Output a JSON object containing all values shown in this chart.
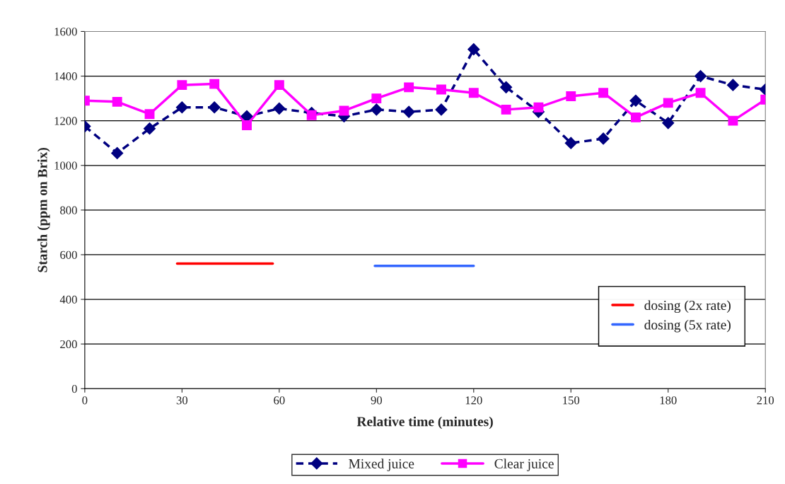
{
  "chart_data": {
    "type": "line",
    "xlabel": "Relative time (minutes)",
    "ylabel": "Starch (ppm on Brix)",
    "x": [
      0,
      10,
      20,
      30,
      40,
      50,
      60,
      70,
      80,
      90,
      100,
      110,
      120,
      130,
      140,
      150,
      160,
      170,
      180,
      190,
      200,
      210
    ],
    "xlim": [
      0,
      210
    ],
    "xticks": [
      0,
      30,
      60,
      90,
      120,
      150,
      180,
      210
    ],
    "ylim": [
      0,
      1600
    ],
    "yticks": [
      0,
      200,
      400,
      600,
      800,
      1000,
      1200,
      1400,
      1600
    ],
    "grid": "y",
    "legend": "bottom",
    "series": [
      {
        "name": "Mixed juice",
        "color": "#000080",
        "marker": "diamond",
        "line_style": "dashed",
        "values": [
          1175,
          1055,
          1165,
          1260,
          1260,
          1220,
          1255,
          1235,
          1220,
          1250,
          1240,
          1250,
          1520,
          1350,
          1240,
          1100,
          1120,
          1290,
          1190,
          1400,
          1360,
          1340
        ]
      },
      {
        "name": "Clear juice",
        "color": "#ff00ff",
        "marker": "square",
        "line_style": "solid",
        "values": [
          1290,
          1285,
          1230,
          1360,
          1365,
          1180,
          1360,
          1225,
          1245,
          1300,
          1350,
          1340,
          1325,
          1250,
          1260,
          1310,
          1325,
          1215,
          1280,
          1325,
          1200,
          1295
        ]
      },
      {
        "name": "dosing (2x rate)",
        "color": "#ff0000",
        "marker": "none",
        "line_style": "solid",
        "x": [
          28.5,
          58
        ],
        "values": [
          560,
          560
        ]
      },
      {
        "name": "dosing (5x rate)",
        "color": "#3366ff",
        "marker": "none",
        "line_style": "solid",
        "x": [
          89.5,
          120
        ],
        "values": [
          550,
          550
        ]
      }
    ]
  }
}
